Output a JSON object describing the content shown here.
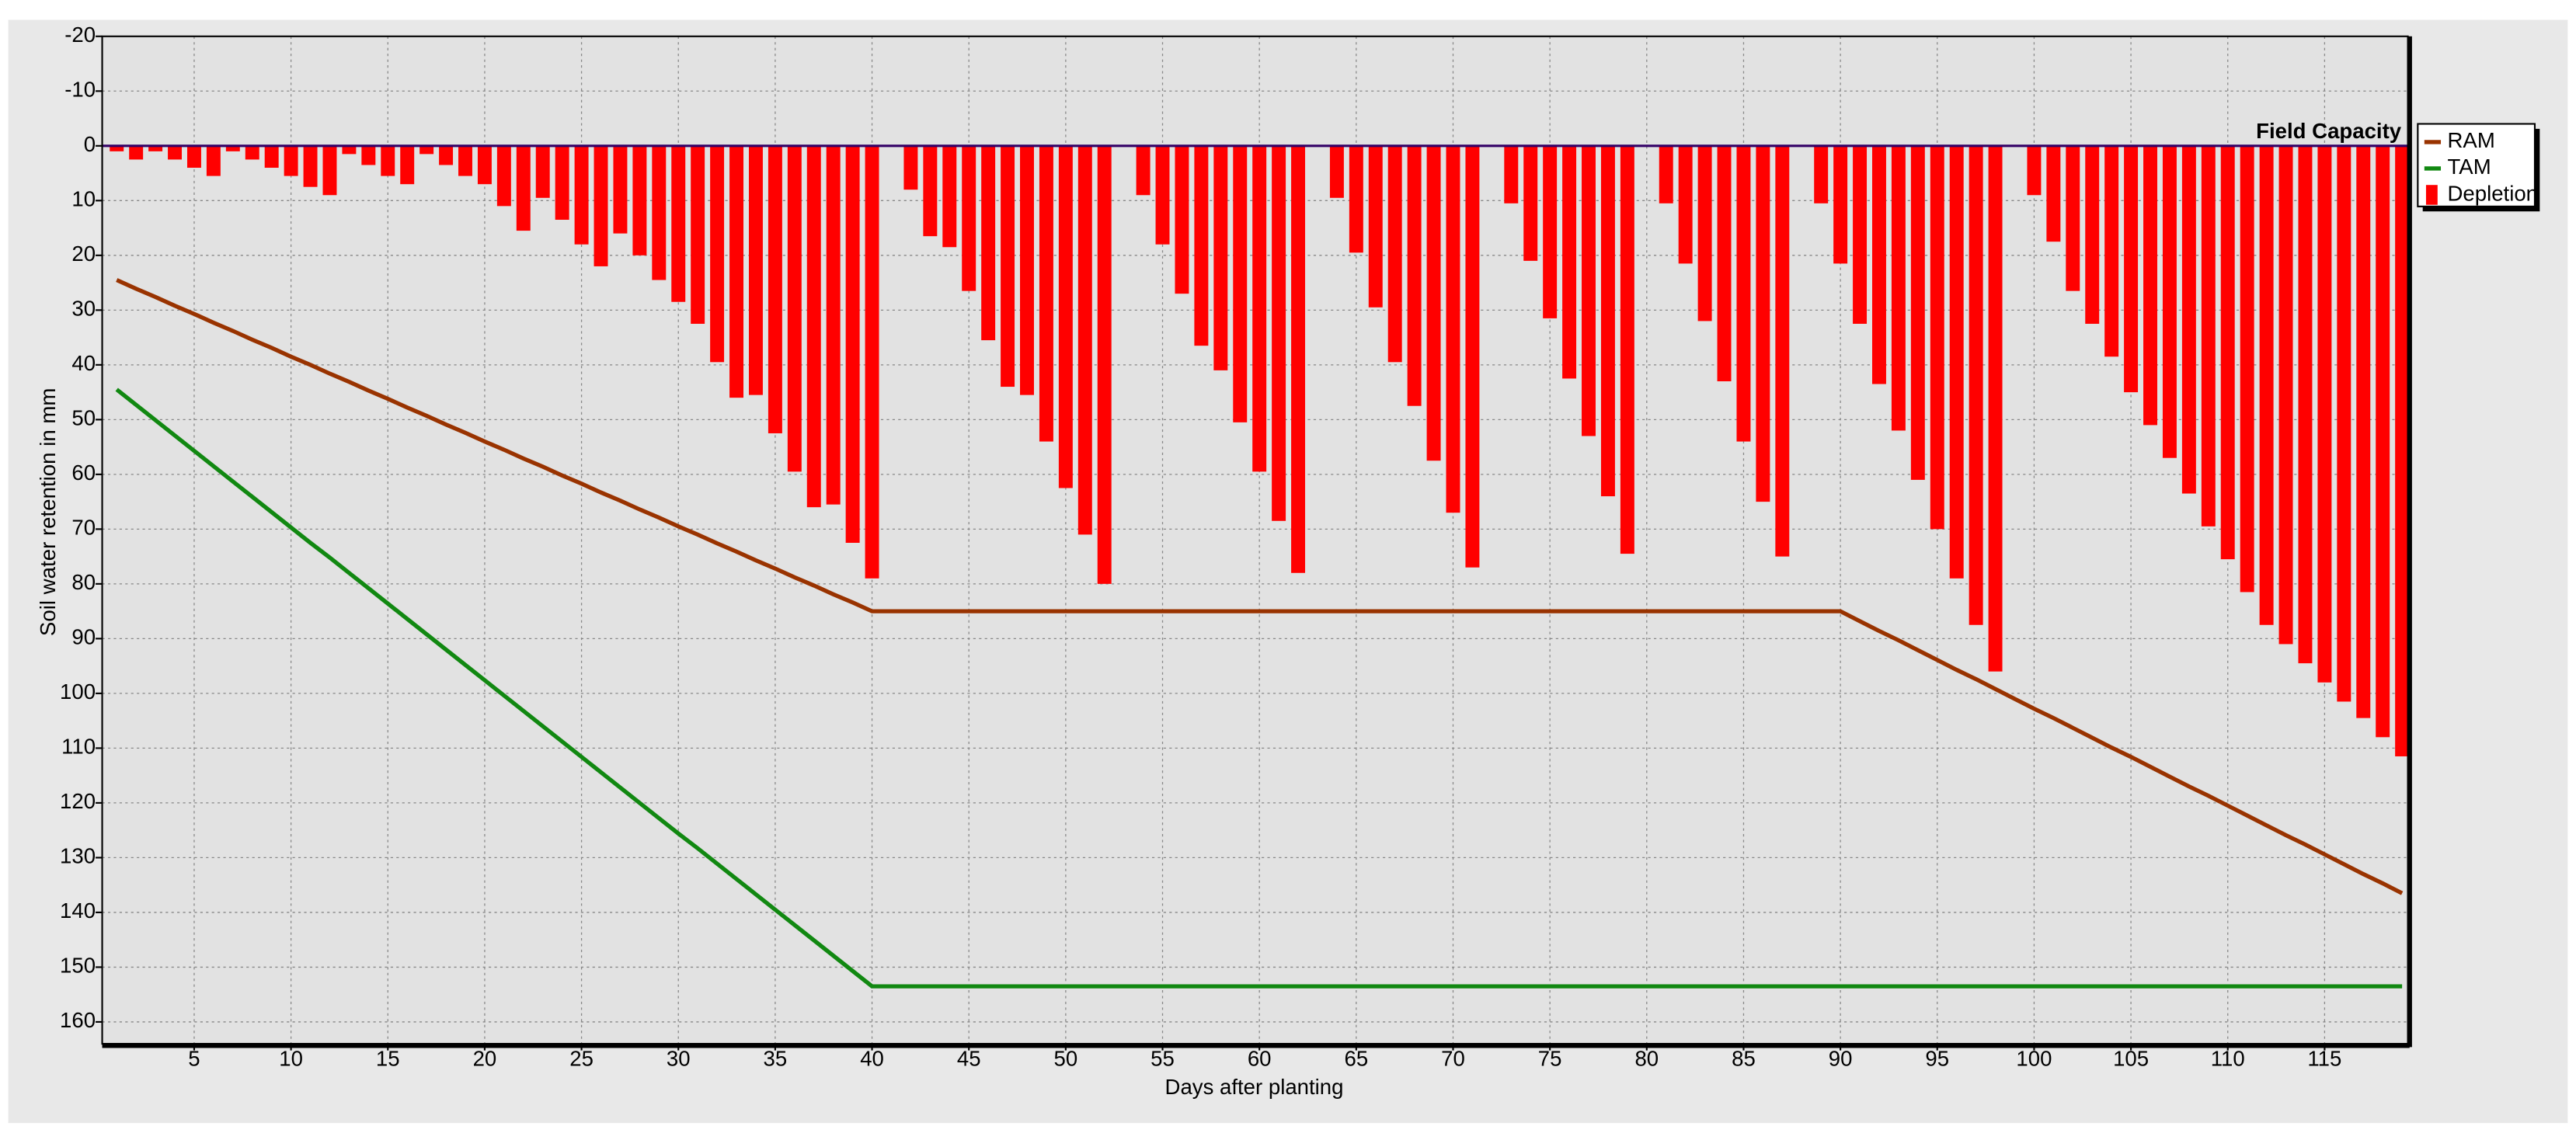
{
  "chart_data": {
    "type": "bar",
    "x_label": "Days after planting",
    "y_label": "Soil water retention in mm",
    "annotation": {
      "label": "Field Capacity",
      "value": 0
    },
    "xlim": [
      0.25,
      119.3
    ],
    "xticks": [
      5,
      10,
      15,
      20,
      25,
      30,
      35,
      40,
      45,
      50,
      55,
      60,
      65,
      70,
      75,
      80,
      85,
      90,
      95,
      100,
      105,
      110,
      115
    ],
    "ylim": [
      -20,
      164
    ],
    "y_inverted": true,
    "yticks": [
      -20,
      -10,
      0,
      10,
      20,
      30,
      40,
      50,
      60,
      70,
      80,
      90,
      100,
      110,
      120,
      130,
      140,
      150,
      160
    ],
    "grid": true,
    "legend": "upper right",
    "x": [
      1,
      2,
      3,
      4,
      5,
      6,
      7,
      8,
      9,
      10,
      11,
      12,
      13,
      14,
      15,
      16,
      17,
      18,
      19,
      20,
      21,
      22,
      23,
      24,
      25,
      26,
      27,
      28,
      29,
      30,
      31,
      32,
      33,
      34,
      35,
      36,
      37,
      38,
      39,
      40,
      41,
      42,
      43,
      44,
      45,
      46,
      47,
      48,
      49,
      50,
      51,
      52,
      53,
      54,
      55,
      56,
      57,
      58,
      59,
      60,
      61,
      62,
      63,
      64,
      65,
      66,
      67,
      68,
      69,
      70,
      71,
      72,
      73,
      74,
      75,
      76,
      77,
      78,
      79,
      80,
      81,
      82,
      83,
      84,
      85,
      86,
      87,
      88,
      89,
      90,
      91,
      92,
      93,
      94,
      95,
      96,
      97,
      98,
      99,
      100,
      101,
      102,
      103,
      104,
      105,
      106,
      107,
      108,
      109,
      110,
      111,
      112,
      113,
      114,
      115,
      116,
      117,
      118,
      119
    ],
    "series": [
      {
        "name": "RAM",
        "type": "line",
        "color": "#993300",
        "values": [
          24.5,
          26.1,
          27.6,
          29.2,
          30.7,
          32.3,
          33.8,
          35.4,
          36.9,
          38.5,
          40.0,
          41.6,
          43.1,
          44.7,
          46.2,
          47.8,
          49.3,
          50.9,
          52.4,
          54.0,
          55.5,
          57.1,
          58.6,
          60.2,
          61.7,
          63.3,
          64.8,
          66.4,
          67.9,
          69.5,
          71.0,
          72.6,
          74.1,
          75.7,
          77.2,
          78.8,
          80.3,
          81.9,
          83.4,
          85,
          85,
          85,
          85,
          85,
          85,
          85,
          85,
          85,
          85,
          85,
          85,
          85,
          85,
          85,
          85,
          85,
          85,
          85,
          85,
          85,
          85,
          85,
          85,
          85,
          85,
          85,
          85,
          85,
          85,
          85,
          85,
          85,
          85,
          85,
          85,
          85,
          85,
          85,
          85,
          85,
          85,
          85,
          85,
          85,
          85,
          85,
          85,
          85,
          85,
          85,
          86.8,
          88.6,
          90.3,
          92.1,
          93.9,
          95.7,
          97.4,
          99.2,
          101.0,
          102.8,
          104.5,
          106.3,
          108.1,
          109.9,
          111.6,
          113.4,
          115.2,
          117.0,
          118.7,
          120.5,
          122.3,
          124.1,
          125.9,
          127.6,
          129.4,
          131.2,
          133.0,
          134.7,
          136.5
        ]
      },
      {
        "name": "TAM",
        "type": "line",
        "color": "#118811",
        "values": [
          44.5,
          47.3,
          50.1,
          52.9,
          55.7,
          58.5,
          61.3,
          64.1,
          66.9,
          69.7,
          72.5,
          75.2,
          78.0,
          80.8,
          83.6,
          86.4,
          89.2,
          92.0,
          94.8,
          97.6,
          100.4,
          103.2,
          106.0,
          108.8,
          111.6,
          114.4,
          117.2,
          120.0,
          122.8,
          125.6,
          128.3,
          131.1,
          133.9,
          136.7,
          139.5,
          142.3,
          145.1,
          147.9,
          150.7,
          153.5,
          153.5,
          153.5,
          153.5,
          153.5,
          153.5,
          153.5,
          153.5,
          153.5,
          153.5,
          153.5,
          153.5,
          153.5,
          153.5,
          153.5,
          153.5,
          153.5,
          153.5,
          153.5,
          153.5,
          153.5,
          153.5,
          153.5,
          153.5,
          153.5,
          153.5,
          153.5,
          153.5,
          153.5,
          153.5,
          153.5,
          153.5,
          153.5,
          153.5,
          153.5,
          153.5,
          153.5,
          153.5,
          153.5,
          153.5,
          153.5,
          153.5,
          153.5,
          153.5,
          153.5,
          153.5,
          153.5,
          153.5,
          153.5,
          153.5,
          153.5,
          153.5,
          153.5,
          153.5,
          153.5,
          153.5,
          153.5,
          153.5,
          153.5,
          153.5,
          153.5,
          153.5,
          153.5,
          153.5,
          153.5,
          153.5,
          153.5,
          153.5,
          153.5,
          153.5,
          153.5,
          153.5,
          153.5,
          153.5,
          153.5,
          153.5,
          153.5,
          153.5,
          153.5,
          153.5
        ]
      },
      {
        "name": "Depletion",
        "type": "bar",
        "color": "#ff0000",
        "values": [
          1,
          2.5,
          1,
          2.5,
          4,
          5.5,
          1,
          2.5,
          4,
          5.5,
          7.5,
          9,
          1.5,
          3.5,
          5.5,
          7,
          1.5,
          3.5,
          5.5,
          7,
          11,
          15.5,
          9.5,
          13.5,
          18,
          22,
          16,
          20,
          24.5,
          28.5,
          32.5,
          39.5,
          46,
          45.5,
          52.5,
          59.5,
          66,
          65.5,
          72.5,
          79,
          0,
          8,
          16.5,
          18.5,
          26.5,
          35.5,
          44,
          45.5,
          54,
          62.5,
          71,
          80,
          0,
          9,
          18,
          27,
          36.5,
          41,
          50.5,
          59.5,
          68.5,
          78,
          0,
          9.5,
          19.5,
          29.5,
          39.5,
          47.5,
          57.5,
          67,
          77,
          0,
          10.5,
          21,
          31.5,
          42.5,
          53,
          64,
          74.5,
          0,
          10.5,
          21.5,
          32,
          43,
          54,
          65,
          75,
          0,
          10.5,
          21.5,
          32.5,
          43.5,
          52,
          61,
          70,
          79,
          87.5,
          96,
          0,
          9,
          17.5,
          26.5,
          32.5,
          38.5,
          45,
          51,
          57,
          63.5,
          69.5,
          75.5,
          81.5,
          87.5,
          91,
          94.5,
          98,
          101.5,
          104.5,
          108,
          111.5
        ]
      }
    ]
  }
}
